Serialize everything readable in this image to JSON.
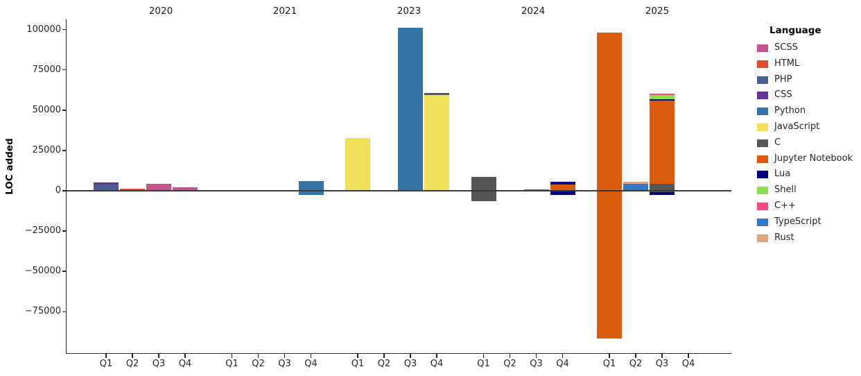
{
  "chart_data": {
    "type": "bar",
    "stacked": true,
    "title": "",
    "ylabel": "LOC added",
    "xlabel": "",
    "grid": false,
    "legend_title": "Language",
    "legend_position": "right-outside-top",
    "ylim": [
      -95000,
      105000
    ],
    "y_ticks": [
      {
        "value": 100000,
        "label": "100000"
      },
      {
        "value": 75000,
        "label": "75000"
      },
      {
        "value": 50000,
        "label": "50000"
      },
      {
        "value": 25000,
        "label": "25000"
      },
      {
        "value": 0,
        "label": "0"
      },
      {
        "value": -25000,
        "label": "−25000"
      },
      {
        "value": -50000,
        "label": "−50000"
      },
      {
        "value": -75000,
        "label": "−75000"
      }
    ],
    "languages": [
      {
        "name": "SCSS",
        "color": "#c6538c"
      },
      {
        "name": "HTML",
        "color": "#e34c26"
      },
      {
        "name": "PHP",
        "color": "#4f5d95"
      },
      {
        "name": "CSS",
        "color": "#663399"
      },
      {
        "name": "Python",
        "color": "#3572a5"
      },
      {
        "name": "JavaScript",
        "color": "#f1e05a"
      },
      {
        "name": "C",
        "color": "#555555"
      },
      {
        "name": "Jupyter Notebook",
        "color": "#da5b0b"
      },
      {
        "name": "Lua",
        "color": "#000080"
      },
      {
        "name": "Shell",
        "color": "#89e051"
      },
      {
        "name": "C++",
        "color": "#f34b7d"
      },
      {
        "name": "TypeScript",
        "color": "#3178c6"
      },
      {
        "name": "Rust",
        "color": "#dea584"
      }
    ],
    "years": [
      {
        "year": "2020",
        "quarters": [
          {
            "label": "Q1",
            "segments": [
              {
                "language": "PHP",
                "value": 3700
              },
              {
                "language": "CSS",
                "value": 1300
              }
            ]
          },
          {
            "label": "Q2",
            "segments": [
              {
                "language": "HTML",
                "value": 1500
              }
            ]
          },
          {
            "label": "Q3",
            "segments": [
              {
                "language": "SCSS",
                "value": 4300
              }
            ]
          },
          {
            "label": "Q4",
            "segments": [
              {
                "language": "SCSS",
                "value": 2300
              }
            ]
          }
        ]
      },
      {
        "year": "2021",
        "quarters": [
          {
            "label": "Q1",
            "segments": []
          },
          {
            "label": "Q2",
            "segments": []
          },
          {
            "label": "Q3",
            "segments": []
          },
          {
            "label": "Q4",
            "segments": [
              {
                "language": "Python",
                "value": 6200
              },
              {
                "language": "Python",
                "value": -2700
              }
            ]
          }
        ]
      },
      {
        "year": "2023",
        "quarters": [
          {
            "label": "Q1",
            "segments": [
              {
                "language": "JavaScript",
                "value": 32700
              }
            ]
          },
          {
            "label": "Q2",
            "segments": []
          },
          {
            "label": "Q3",
            "segments": [
              {
                "language": "Python",
                "value": 101000
              }
            ]
          },
          {
            "label": "Q4",
            "segments": [
              {
                "language": "JavaScript",
                "value": 59500
              },
              {
                "language": "C",
                "value": 1000
              }
            ]
          }
        ]
      },
      {
        "year": "2024",
        "quarters": [
          {
            "label": "Q1",
            "segments": [
              {
                "language": "C",
                "value": 8800
              },
              {
                "language": "C",
                "value": -6400
              }
            ]
          },
          {
            "label": "Q2",
            "segments": []
          },
          {
            "label": "Q3",
            "segments": [
              {
                "language": "Python",
                "value": 800
              }
            ]
          },
          {
            "label": "Q4",
            "segments": [
              {
                "language": "Jupyter Notebook",
                "value": 3700
              },
              {
                "language": "Lua",
                "value": 2000
              },
              {
                "language": "Jupyter Notebook",
                "value": -500
              },
              {
                "language": "Lua",
                "value": -2000
              }
            ]
          }
        ]
      },
      {
        "year": "2025",
        "quarters": [
          {
            "label": "Q1",
            "segments": [
              {
                "language": "Jupyter Notebook",
                "value": 98000
              },
              {
                "language": "Jupyter Notebook",
                "value": -91500
              }
            ]
          },
          {
            "label": "Q2",
            "segments": [
              {
                "language": "TypeScript",
                "value": 4300
              },
              {
                "language": "Rust",
                "value": 1400
              }
            ]
          },
          {
            "label": "Q3",
            "segments": [
              {
                "language": "C",
                "value": 4200
              },
              {
                "language": "Jupyter Notebook",
                "value": 51800
              },
              {
                "language": "Lua",
                "value": 1000
              },
              {
                "language": "Shell",
                "value": 2300
              },
              {
                "language": "C++",
                "value": 1000
              },
              {
                "language": "C",
                "value": -800
              },
              {
                "language": "Lua",
                "value": -1700
              }
            ]
          },
          {
            "label": "Q4",
            "segments": []
          }
        ]
      }
    ]
  }
}
